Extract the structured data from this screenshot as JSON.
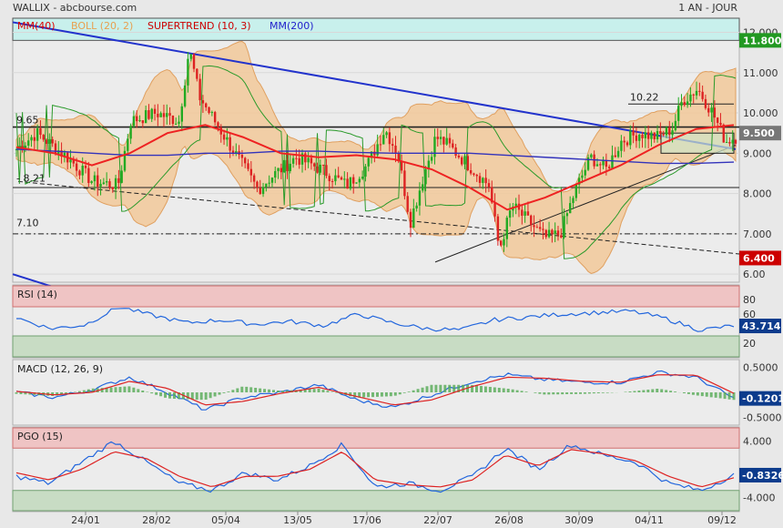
{
  "header": {
    "symbol_source": "WALLIX - abcbourse.com",
    "period": "1 AN - JOUR"
  },
  "legend": [
    {
      "label": "MM(40)",
      "color": "#dd0000"
    },
    {
      "label": "BOLL (20, 2)",
      "color": "#e8a050"
    },
    {
      "label": "SUPERTREND (10, 3)",
      "color": "#cc0000"
    },
    {
      "label": "MM(200)",
      "color": "#2222cc"
    }
  ],
  "colors": {
    "up": "#22aa22",
    "down": "#dd2222",
    "mm40": "#ee2222",
    "mm200": "#3333bb",
    "trend_blue": "#2233cc",
    "boll_fill": "#f2c99a",
    "zone_cyan": "#c8f0ec",
    "zone_red": "#efc4c4",
    "zone_green": "#c8dcc4"
  },
  "chart_data": [
    {
      "type": "line",
      "name": "price",
      "title": "",
      "x_ticks": [
        "24/01",
        "28/02",
        "05/04",
        "13/05",
        "17/06",
        "22/07",
        "26/08",
        "30/09",
        "04/11",
        "09/12"
      ],
      "y_ticks": [
        "6.00",
        "7.000",
        "8.000",
        "9.000",
        "10.000",
        "11.000",
        "12.000"
      ],
      "ylim": [
        5.8,
        12.35
      ],
      "price_labels": [
        {
          "text": "11.800",
          "value": 11.8,
          "bg": "#229922"
        },
        {
          "text": "9.500",
          "value": 9.5,
          "bg": "#777777"
        },
        {
          "text": "6.400",
          "value": 6.4,
          "bg": "#cc0000"
        }
      ],
      "annotations": [
        {
          "text": "10.22",
          "value": 10.22
        },
        {
          "text": "9.65",
          "value": 9.65
        },
        {
          "text": "8.21",
          "value": 8.21
        },
        {
          "text": "7.10",
          "value": 7.1
        }
      ],
      "horizontal_levels": [
        9.65,
        8.15,
        7.0
      ],
      "series": [
        {
          "name": "MM(200)",
          "values": [
            9.1,
            9.05,
            9.0,
            8.95,
            8.95,
            9.0,
            9.0,
            9.05,
            9.05,
            9.02,
            9.0,
            9.0,
            9.0,
            8.95,
            8.9,
            8.85,
            8.8,
            8.75,
            8.75,
            8.78
          ]
        },
        {
          "name": "MM(40)",
          "values": [
            9.15,
            9.0,
            8.7,
            9.0,
            9.5,
            9.7,
            9.4,
            9.0,
            8.9,
            8.95,
            8.85,
            8.6,
            8.15,
            7.6,
            7.9,
            8.3,
            8.7,
            9.2,
            9.6,
            9.7
          ]
        }
      ]
    },
    {
      "type": "line",
      "name": "RSI",
      "label": "RSI (14)",
      "y_ticks": [
        "80",
        "60",
        "40",
        "20"
      ],
      "ylim": [
        0,
        100
      ],
      "zones": {
        "overbought": 70,
        "oversold": 30
      },
      "last_value": "43.714",
      "series": [
        {
          "name": "RSI",
          "values": [
            55,
            40,
            45,
            70,
            58,
            48,
            52,
            46,
            50,
            44,
            60,
            48,
            40,
            38,
            52,
            56,
            60,
            62,
            64,
            54,
            38,
            44
          ]
        }
      ]
    },
    {
      "type": "line",
      "name": "MACD",
      "label": "MACD (12, 26, 9)",
      "y_ticks": [
        "0.5000",
        "-0.5000"
      ],
      "ylim": [
        -0.65,
        0.65
      ],
      "last_value": "-0.1201",
      "series": [
        {
          "name": "MACD",
          "values": [
            0.0,
            -0.1,
            0.05,
            0.3,
            0.0,
            -0.35,
            -0.1,
            0.0,
            0.15,
            -0.15,
            -0.3,
            -0.05,
            0.2,
            0.35,
            0.25,
            0.2,
            0.2,
            0.4,
            0.3,
            -0.12
          ]
        },
        {
          "name": "Signal",
          "values": [
            0.02,
            -0.05,
            0.0,
            0.22,
            0.08,
            -0.25,
            -0.18,
            -0.02,
            0.1,
            -0.08,
            -0.25,
            -0.15,
            0.1,
            0.3,
            0.28,
            0.22,
            0.2,
            0.35,
            0.34,
            -0.02
          ]
        }
      ]
    },
    {
      "type": "line",
      "name": "PGO",
      "label": "PGO (15)",
      "y_ticks": [
        "4.000",
        "-4.000"
      ],
      "ylim": [
        -6,
        6
      ],
      "zones": {
        "overbought": 3,
        "oversold": -3
      },
      "last_value": "-0.8326",
      "series": [
        {
          "name": "PGO",
          "values": [
            -1,
            -2,
            1,
            4,
            1,
            -2,
            -3,
            -0.5,
            -1.5,
            0.5,
            3.5,
            -2.5,
            -2,
            -3,
            -1,
            3,
            0,
            3.5,
            2,
            1,
            -2,
            -3,
            -0.8
          ]
        },
        {
          "name": "Signal",
          "values": [
            -0.5,
            -1.5,
            0,
            2.5,
            1.5,
            -1,
            -2.5,
            -1,
            -1,
            0,
            2.5,
            -1.5,
            -2.2,
            -2.5,
            -1.5,
            2,
            0.5,
            2.8,
            2.2,
            1.2,
            -1,
            -2.5,
            -1.2
          ]
        }
      ]
    }
  ]
}
